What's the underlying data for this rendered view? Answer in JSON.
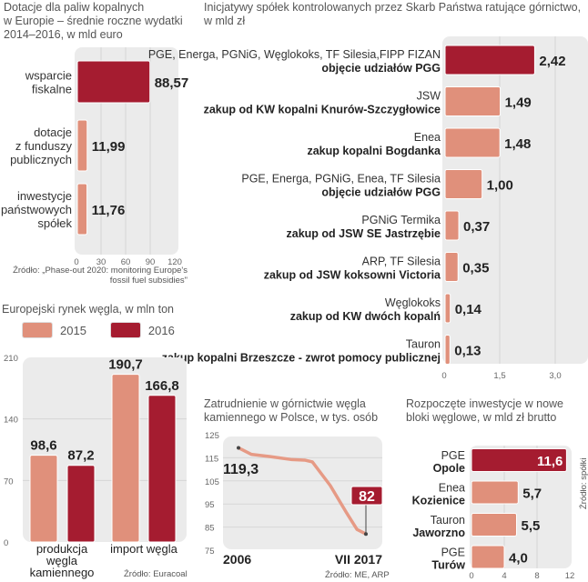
{
  "colors": {
    "accent_dark": "#a51c30",
    "accent_light": "#e0907b",
    "plot_bg": "#ebebeb",
    "line": "#e69a85",
    "value_text": "#222222",
    "muted_text": "#666666"
  },
  "chart_data": [
    {
      "id": "subsidies",
      "type": "bar",
      "orientation": "horizontal",
      "title": "Dotacje dla paliw kopalnych w Europie – średnie roczne wydatki 2014–2016, w mld euro",
      "title_lines": [
        "Dotacje dla paliw kopalnych",
        "w Europie – średnie roczne wydatki",
        "2014–2016, w mld euro"
      ],
      "categories": [
        "wsparcie fiskalne",
        "dotacje z funduszy publicznych",
        "inwestycje państwowych spółek"
      ],
      "category_lines": [
        [
          "wsparcie",
          "fiskalne"
        ],
        [
          "dotacje",
          "z funduszy",
          "publicznych"
        ],
        [
          "inwestycje",
          "państwowych",
          "spółek"
        ]
      ],
      "values": [
        88.57,
        11.99,
        11.76
      ],
      "value_labels": [
        "88,57",
        "11,99",
        "11,76"
      ],
      "highlight": [
        true,
        false,
        false
      ],
      "xlim": [
        0,
        120
      ],
      "xticks": [
        0,
        30,
        60,
        90,
        120
      ],
      "xtick_labels": [
        "0",
        "30",
        "60",
        "90",
        "120"
      ],
      "grid": true,
      "source_lines": [
        "Źródło: „Phase-out 2020: monitoring Europe's",
        "fossil fuel subsidies\""
      ]
    },
    {
      "id": "state-companies",
      "type": "bar",
      "orientation": "horizontal",
      "title": "Inicjatywy spółek kontrolowanych przez Skarb Państwa ratujące górnictwo, w mld zł",
      "title_lines": [
        "Inicjatywy spółek kontrolowanych przez Skarb Państwa ratujące górnictwo,",
        "w mld zł"
      ],
      "categories": [
        {
          "who": "PGE, Energa, PGNiG, Węglokoks, TF Silesia,FIPP FIZAN",
          "what": "objęcie udziałów PGG"
        },
        {
          "who": "JSW",
          "what": "zakup od KW kopalni Knurów-Szczygłowice"
        },
        {
          "who": "Enea",
          "what": "zakup kopalni Bogdanka"
        },
        {
          "who": "PGE, Energa, PGNiG, Enea, TF Silesia",
          "what": "objęcie udziałów PGG"
        },
        {
          "who": "PGNiG Termika",
          "what": "zakup od JSW SE Jastrzębie"
        },
        {
          "who": "ARP, TF Silesia",
          "what": "zakup od JSW koksowni Victoria"
        },
        {
          "who": "Węglokoks",
          "what": "zakup od KW dwóch kopalń"
        },
        {
          "who": "Tauron",
          "what": "zakup kopalni Brzeszcze - zwrot pomocy publicznej"
        }
      ],
      "values": [
        2.42,
        1.49,
        1.48,
        1.0,
        0.37,
        0.35,
        0.14,
        0.13
      ],
      "value_labels": [
        "2,42",
        "1,49",
        "1,48",
        "1,00",
        "0,37",
        "0,35",
        "0,14",
        "0,13"
      ],
      "highlight": [
        true,
        false,
        false,
        false,
        false,
        false,
        false,
        false
      ],
      "xlim": [
        0,
        3.0
      ],
      "xticks": [
        0,
        1.5,
        3.0
      ],
      "xtick_labels": [
        "0",
        "1,5",
        "3,0"
      ],
      "grid": true
    },
    {
      "id": "coal-market",
      "type": "bar",
      "orientation": "vertical",
      "title": "Europejski rynek węgla, w mln ton",
      "legend": [
        "2015",
        "2016"
      ],
      "legend_position": "top-left",
      "categories": [
        "produkcja węgla kamiennego",
        "import węgla"
      ],
      "category_lines": [
        [
          "produkcja",
          "węgla",
          "kamiennego"
        ],
        [
          "import węgla"
        ]
      ],
      "series": [
        {
          "name": "2015",
          "values": [
            98.6,
            190.7
          ],
          "labels": [
            "98,6",
            "190,7"
          ]
        },
        {
          "name": "2016",
          "values": [
            87.2,
            166.8
          ],
          "labels": [
            "87,2",
            "166,8"
          ]
        }
      ],
      "ylim": [
        0,
        210
      ],
      "yticks": [
        0,
        70,
        140,
        210
      ],
      "ytick_labels": [
        "0",
        "70",
        "140",
        "210"
      ],
      "grid": true,
      "source": "Źródło: Euracoal"
    },
    {
      "id": "employment",
      "type": "line",
      "title": "Zatrudnienie w górnictwie węgla kamiennego w Polsce, w tys. osób",
      "title_lines": [
        "Zatrudnienie w górnictwie węgla",
        "kamiennego w Polsce, w tys. osób"
      ],
      "x_labels": [
        "2006",
        "VII 2017"
      ],
      "series": [
        {
          "name": "zatrudnienie",
          "points": [
            {
              "t": 0.0,
              "v": 119.3
            },
            {
              "t": 0.1,
              "v": 116.5
            },
            {
              "t": 0.25,
              "v": 115.5
            },
            {
              "t": 0.42,
              "v": 114.2
            },
            {
              "t": 0.52,
              "v": 114.0
            },
            {
              "t": 0.58,
              "v": 113.2
            },
            {
              "t": 0.72,
              "v": 103.0
            },
            {
              "t": 0.85,
              "v": 91.0
            },
            {
              "t": 0.93,
              "v": 84.0
            },
            {
              "t": 1.0,
              "v": 82.0
            }
          ]
        }
      ],
      "start_label": "119,3",
      "end_label": "82",
      "ylim": [
        75,
        125
      ],
      "yticks": [
        75,
        85,
        95,
        105,
        115,
        125
      ],
      "ytick_labels": [
        "75",
        "85",
        "95",
        "105",
        "115",
        "125"
      ],
      "grid": true,
      "source": "Źródło: ME, ARP"
    },
    {
      "id": "new-units",
      "type": "bar",
      "orientation": "horizontal",
      "title": "Rozpoczęte inwestycje w nowe bloki węglowe, w mld zł brutto",
      "title_lines": [
        "Rozpoczęte inwestycje w nowe",
        "bloki węglowe, w mld zł brutto"
      ],
      "categories": [
        {
          "who": "PGE",
          "what": "Opole"
        },
        {
          "who": "Enea",
          "what": "Kozienice"
        },
        {
          "who": "Tauron",
          "what": "Jaworzno"
        },
        {
          "who": "PGE",
          "what": "Turów"
        }
      ],
      "values": [
        11.6,
        5.7,
        5.5,
        4.0
      ],
      "value_labels": [
        "11,6",
        "5,7",
        "5,5",
        "4,0"
      ],
      "highlight": [
        true,
        false,
        false,
        false
      ],
      "xlim": [
        0,
        12
      ],
      "xticks": [
        0,
        4,
        8,
        12
      ],
      "xtick_labels": [
        "0",
        "4",
        "8",
        "12"
      ],
      "grid": true,
      "source": "Źródło: spółki"
    }
  ]
}
